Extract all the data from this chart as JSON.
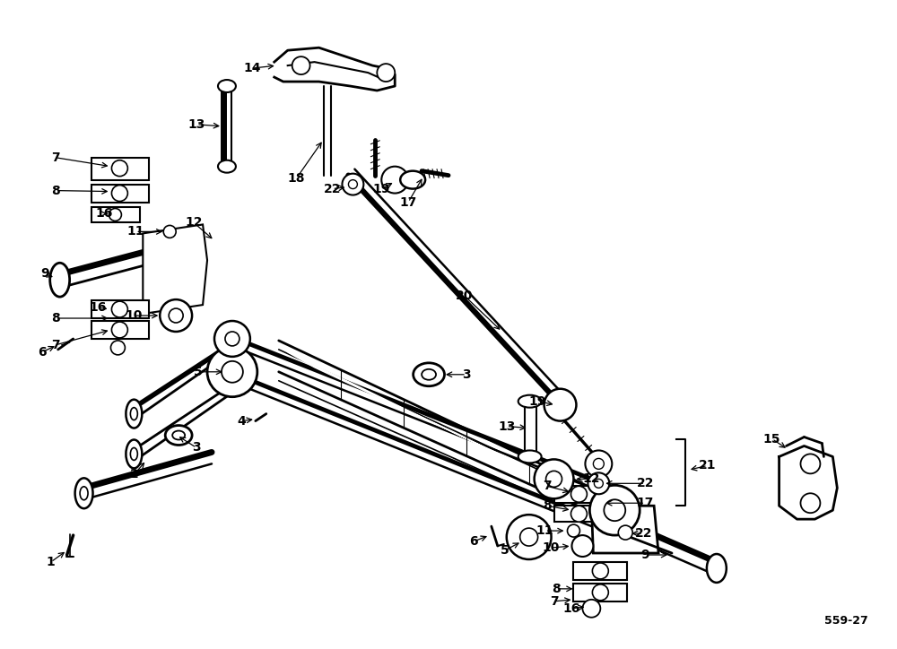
{
  "title": "559-27",
  "bg_color": "#ffffff",
  "line_color": "#1a1a1a",
  "fig_width": 10.0,
  "fig_height": 7.24,
  "dpi": 100
}
